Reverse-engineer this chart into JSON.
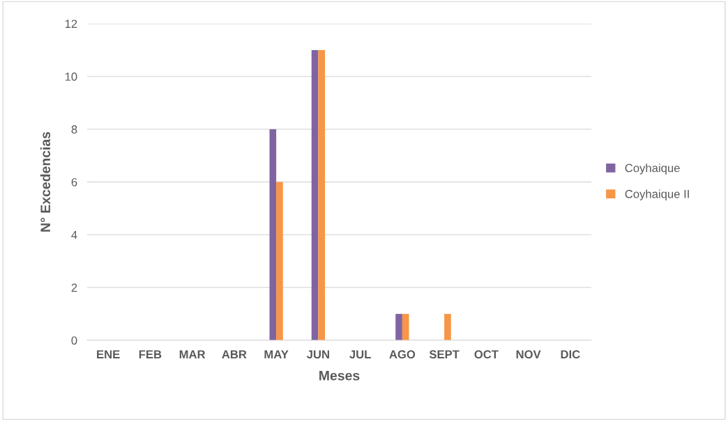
{
  "chart_data": {
    "type": "bar",
    "xlabel": "Meses",
    "ylabel": "N° Excedencias",
    "categories": [
      "ENE",
      "FEB",
      "MAR",
      "ABR",
      "MAY",
      "JUN",
      "JUL",
      "AGO",
      "SEPT",
      "OCT",
      "NOV",
      "DIC"
    ],
    "series": [
      {
        "name": "Coyhaique",
        "color": "#8064a2",
        "values": [
          0,
          0,
          0,
          0,
          8,
          11,
          0,
          1,
          0,
          0,
          0,
          0
        ]
      },
      {
        "name": "Coyhaique II",
        "color": "#f79646",
        "values": [
          0,
          0,
          0,
          0,
          6,
          11,
          0,
          1,
          1,
          0,
          0,
          0
        ]
      }
    ],
    "ylim": [
      0,
      12
    ],
    "yticks": [
      0,
      2,
      4,
      6,
      8,
      10,
      12
    ],
    "grid": "y",
    "legend": "right"
  }
}
